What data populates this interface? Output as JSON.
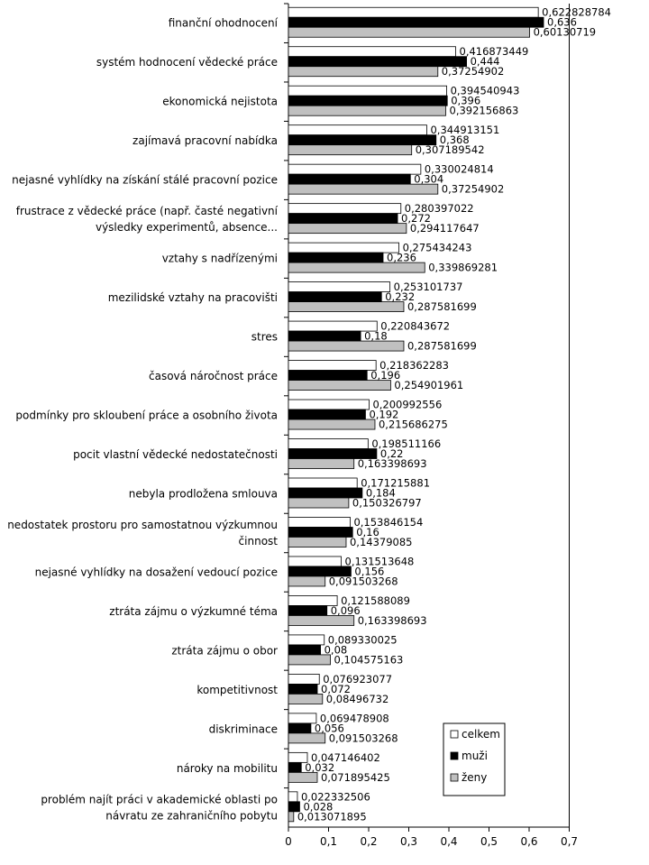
{
  "chart_data": {
    "type": "bar",
    "orientation": "horizontal",
    "xlim": [
      0,
      0.7
    ],
    "x_ticks": [
      "0",
      "0,1",
      "0,2",
      "0,3",
      "0,4",
      "0,5",
      "0,6",
      "0,7"
    ],
    "legend_position": "bottom-right",
    "categories": [
      "finanční ohodnocení",
      "systém hodnocení vědecké práce",
      "ekonomická nejistota",
      "zajímavá pracovní nabídka",
      "nejasné vyhlídky na získání stálé pracovní pozice",
      "frustrace z vědecké práce (např. časté negativní výsledky experimentů, absence...",
      "vztahy s nadřízenými",
      "mezilidské vztahy na pracovišti",
      "stres",
      "časová náročnost práce",
      "podmínky pro skloubení práce a osobního života",
      "pocit vlastní vědecké nedostatečnosti",
      "nebyla prodložena smlouva",
      "nedostatek prostoru pro samostatnou výzkumnou činnost",
      "nejasné vyhlídky na dosažení vedoucí pozice",
      "ztráta zájmu o výzkumné téma",
      "ztráta zájmu o obor",
      "kompetitivnost",
      "diskriminace",
      "nároky na mobilitu",
      "problém najít práci v akademické oblasti po návratu ze zahraničního pobytu"
    ],
    "category_lines": [
      [
        "finanční ohodnocení"
      ],
      [
        "systém hodnocení vědecké práce"
      ],
      [
        "ekonomická nejistota"
      ],
      [
        "zajímavá pracovní nabídka"
      ],
      [
        "nejasné vyhlídky na získání stálé pracovní pozice"
      ],
      [
        "frustrace z vědecké práce (např. časté negativní",
        "výsledky experimentů, absence..."
      ],
      [
        "vztahy s nadřízenými"
      ],
      [
        "mezilidské vztahy na pracovišti"
      ],
      [
        "stres"
      ],
      [
        "časová náročnost práce"
      ],
      [
        "podmínky pro skloubení práce a osobního života"
      ],
      [
        "pocit vlastní vědecké nedostatečnosti"
      ],
      [
        "nebyla prodložena smlouva"
      ],
      [
        "nedostatek prostoru pro samostatnou výzkumnou",
        "činnost"
      ],
      [
        "nejasné vyhlídky na dosažení vedoucí pozice"
      ],
      [
        "ztráta zájmu o výzkumné téma"
      ],
      [
        "ztráta zájmu o obor"
      ],
      [
        "kompetitivnost"
      ],
      [
        "diskriminace"
      ],
      [
        "nároky na mobilitu"
      ],
      [
        "problém najít práci v akademické oblasti po",
        "návratu ze zahraničního pobytu"
      ]
    ],
    "series": [
      {
        "name": "celkem",
        "color": "#ffffff",
        "values": [
          0.622828784,
          0.416873449,
          0.394540943,
          0.344913151,
          0.330024814,
          0.280397022,
          0.275434243,
          0.253101737,
          0.220843672,
          0.218362283,
          0.200992556,
          0.198511166,
          0.171215881,
          0.153846154,
          0.131513648,
          0.121588089,
          0.089330025,
          0.076923077,
          0.069478908,
          0.047146402,
          0.022332506
        ],
        "labels": [
          "0,622828784",
          "0,416873449",
          "0,394540943",
          "0,344913151",
          "0,330024814",
          "0,280397022",
          "0,275434243",
          "0,253101737",
          "0,220843672",
          "0,218362283",
          "0,200992556",
          "0,198511166",
          "0,171215881",
          "0,153846154",
          "0,131513648",
          "0,121588089",
          "0,089330025",
          "0,076923077",
          "0,069478908",
          "0,047146402",
          "0,022332506"
        ]
      },
      {
        "name": "muži",
        "color": "#000000",
        "values": [
          0.636,
          0.444,
          0.396,
          0.368,
          0.304,
          0.272,
          0.236,
          0.232,
          0.18,
          0.196,
          0.192,
          0.22,
          0.184,
          0.16,
          0.156,
          0.096,
          0.08,
          0.072,
          0.056,
          0.032,
          0.028
        ],
        "labels": [
          "0,636",
          "0,444",
          "0,396",
          "0,368",
          "0,304",
          "0,272",
          "0,236",
          "0,232",
          "0,18",
          "0,196",
          "0,192",
          "0,22",
          "0,184",
          "0,16",
          "0,156",
          "0,096",
          "0,08",
          "0,072",
          "0,056",
          "0,032",
          "0,028"
        ]
      },
      {
        "name": "ženy",
        "color": "#c0c0c0",
        "values": [
          0.60130719,
          0.37254902,
          0.392156863,
          0.307189542,
          0.37254902,
          0.294117647,
          0.339869281,
          0.287581699,
          0.287581699,
          0.254901961,
          0.215686275,
          0.163398693,
          0.150326797,
          0.14379085,
          0.091503268,
          0.163398693,
          0.104575163,
          0.08496732,
          0.091503268,
          0.071895425,
          0.013071895
        ],
        "labels": [
          "0,60130719",
          "0,37254902",
          "0,392156863",
          "0,307189542",
          "0,37254902",
          "0,294117647",
          "0,339869281",
          "0,287581699",
          "0,287581699",
          "0,254901961",
          "0,215686275",
          "0,163398693",
          "0,150326797",
          "0,14379085",
          "0,091503268",
          "0,163398693",
          "0,104575163",
          "0,08496732",
          "0,091503268",
          "0,071895425",
          "0,013071895"
        ]
      }
    ]
  }
}
